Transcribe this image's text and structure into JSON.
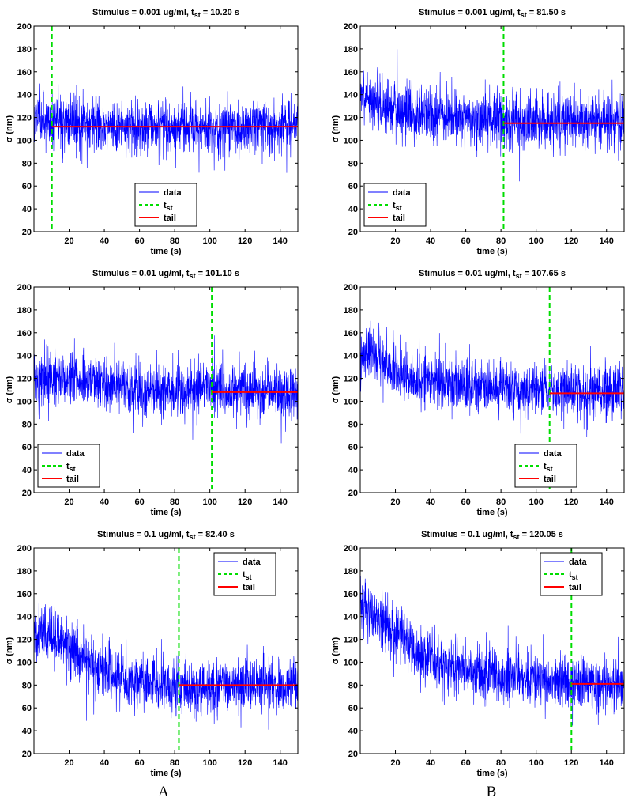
{
  "column_labels": [
    "A",
    "B"
  ],
  "colors": {
    "data": "#0000ff",
    "t_st": "#00dd00",
    "tail": "#ff0000",
    "axes": "#000000"
  },
  "chart_data": [
    {
      "type": "line",
      "title": "Stimulus = 0.001 ug/ml, t",
      "title_sub": "st",
      "title_suffix": " = 10.20 s",
      "xlabel": "time (s)",
      "ylabel": "σ (nm)",
      "xlim": [
        0,
        150
      ],
      "ylim": [
        20,
        200
      ],
      "xticks": [
        20,
        40,
        60,
        80,
        100,
        120,
        140
      ],
      "yticks": [
        20,
        40,
        60,
        80,
        100,
        120,
        140,
        160,
        180,
        200
      ],
      "legend_position": "bottom-center",
      "series": [
        {
          "name": "data",
          "style": "solid",
          "color": "#0000ff",
          "x": [
            0,
            10,
            20,
            40,
            60,
            80,
            100,
            120,
            150
          ],
          "y": [
            122,
            117,
            114,
            112,
            112,
            112,
            112,
            112,
            112
          ]
        },
        {
          "name": "t",
          "name_sub": "st",
          "style": "dashed",
          "color": "#00dd00",
          "x": [
            10.2,
            10.2
          ],
          "y": [
            20,
            200
          ]
        },
        {
          "name": "tail",
          "style": "solid",
          "color": "#ff0000",
          "x": [
            10.2,
            150
          ],
          "y": [
            112,
            112
          ]
        }
      ]
    },
    {
      "type": "line",
      "title": "Stimulus = 0.001 ug/ml, t",
      "title_sub": "st",
      "title_suffix": " = 81.50 s",
      "xlabel": "time (s)",
      "ylabel": "σ (nm)",
      "xlim": [
        0,
        150
      ],
      "ylim": [
        20,
        200
      ],
      "xticks": [
        20,
        40,
        60,
        80,
        100,
        120,
        140
      ],
      "yticks": [
        20,
        40,
        60,
        80,
        100,
        120,
        140,
        160,
        180,
        200
      ],
      "legend_position": "bottom-left",
      "series": [
        {
          "name": "data",
          "style": "solid",
          "color": "#0000ff",
          "x": [
            0,
            10,
            20,
            40,
            60,
            80,
            100,
            120,
            150
          ],
          "y": [
            143,
            132,
            126,
            122,
            120,
            118,
            116,
            115,
            115
          ]
        },
        {
          "name": "t",
          "name_sub": "st",
          "style": "dashed",
          "color": "#00dd00",
          "x": [
            81.5,
            81.5
          ],
          "y": [
            20,
            200
          ]
        },
        {
          "name": "tail",
          "style": "solid",
          "color": "#ff0000",
          "x": [
            81.5,
            150
          ],
          "y": [
            115,
            115
          ]
        }
      ]
    },
    {
      "type": "line",
      "title": "Stimulus = 0.01 ug/ml, t",
      "title_sub": "st",
      "title_suffix": " = 101.10 s",
      "xlabel": "time (s)",
      "ylabel": "σ (nm)",
      "xlim": [
        0,
        150
      ],
      "ylim": [
        20,
        200
      ],
      "xticks": [
        20,
        40,
        60,
        80,
        100,
        120,
        140
      ],
      "yticks": [
        20,
        40,
        60,
        80,
        100,
        120,
        140,
        160,
        180,
        200
      ],
      "legend_position": "bottom-left",
      "series": [
        {
          "name": "data",
          "style": "solid",
          "color": "#0000ff",
          "x": [
            0,
            20,
            40,
            60,
            80,
            90,
            100,
            120,
            150
          ],
          "y": [
            118,
            120,
            116,
            110,
            108,
            109,
            112,
            108,
            108
          ]
        },
        {
          "name": "t",
          "name_sub": "st",
          "style": "dashed",
          "color": "#00dd00",
          "x": [
            101.1,
            101.1
          ],
          "y": [
            20,
            200
          ]
        },
        {
          "name": "tail",
          "style": "solid",
          "color": "#ff0000",
          "x": [
            101.1,
            150
          ],
          "y": [
            108,
            108
          ]
        }
      ]
    },
    {
      "type": "line",
      "title": "Stimulus = 0.01 ug/ml, t",
      "title_sub": "st",
      "title_suffix": " = 107.65 s",
      "xlabel": "time (s)",
      "ylabel": "σ (nm)",
      "xlim": [
        0,
        150
      ],
      "ylim": [
        20,
        200
      ],
      "xticks": [
        20,
        40,
        60,
        80,
        100,
        120,
        140
      ],
      "yticks": [
        20,
        40,
        60,
        80,
        100,
        120,
        140,
        160,
        180,
        200
      ],
      "legend_position": "bottom-right",
      "series": [
        {
          "name": "data",
          "style": "solid",
          "color": "#0000ff",
          "x": [
            0,
            10,
            20,
            40,
            60,
            80,
            100,
            120,
            150
          ],
          "y": [
            138,
            140,
            126,
            118,
            114,
            112,
            110,
            108,
            107
          ]
        },
        {
          "name": "t",
          "name_sub": "st",
          "style": "dashed",
          "color": "#00dd00",
          "x": [
            107.65,
            107.65
          ],
          "y": [
            20,
            200
          ]
        },
        {
          "name": "tail",
          "style": "solid",
          "color": "#ff0000",
          "x": [
            107.65,
            150
          ],
          "y": [
            107,
            107
          ]
        }
      ]
    },
    {
      "type": "line",
      "title": "Stimulus = 0.1 ug/ml, t",
      "title_sub": "st",
      "title_suffix": " = 82.40 s",
      "xlabel": "time (s)",
      "ylabel": "σ (nm)",
      "xlim": [
        0,
        150
      ],
      "ylim": [
        20,
        200
      ],
      "xticks": [
        20,
        40,
        60,
        80,
        100,
        120,
        140
      ],
      "yticks": [
        20,
        40,
        60,
        80,
        100,
        120,
        140,
        160,
        180,
        200
      ],
      "legend_position": "top-right",
      "series": [
        {
          "name": "data",
          "style": "solid",
          "color": "#0000ff",
          "x": [
            0,
            10,
            20,
            30,
            40,
            50,
            60,
            70,
            82,
            100,
            120,
            150
          ],
          "y": [
            125,
            123,
            112,
            102,
            92,
            86,
            82,
            80,
            80,
            80,
            80,
            80
          ]
        },
        {
          "name": "t",
          "name_sub": "st",
          "style": "dashed",
          "color": "#00dd00",
          "x": [
            82.4,
            82.4
          ],
          "y": [
            20,
            200
          ]
        },
        {
          "name": "tail",
          "style": "solid",
          "color": "#ff0000",
          "x": [
            82.4,
            150
          ],
          "y": [
            80,
            80
          ]
        }
      ]
    },
    {
      "type": "line",
      "title": "Stimulus = 0.1 ug/ml, t",
      "title_sub": "st",
      "title_suffix": " = 120.05 s",
      "xlabel": "time (s)",
      "ylabel": "σ (nm)",
      "xlim": [
        0,
        150
      ],
      "ylim": [
        20,
        200
      ],
      "xticks": [
        20,
        40,
        60,
        80,
        100,
        120,
        140
      ],
      "yticks": [
        20,
        40,
        60,
        80,
        100,
        120,
        140,
        160,
        180,
        200
      ],
      "legend_position": "top-right",
      "series": [
        {
          "name": "data",
          "style": "solid",
          "color": "#0000ff",
          "x": [
            0,
            10,
            20,
            30,
            40,
            50,
            60,
            80,
            100,
            120,
            150
          ],
          "y": [
            145,
            140,
            125,
            112,
            100,
            96,
            92,
            88,
            85,
            82,
            80
          ]
        },
        {
          "name": "t",
          "name_sub": "st",
          "style": "dashed",
          "color": "#00dd00",
          "x": [
            120.05,
            120.05
          ],
          "y": [
            20,
            200
          ]
        },
        {
          "name": "tail",
          "style": "solid",
          "color": "#ff0000",
          "x": [
            120.05,
            150
          ],
          "y": [
            81,
            81
          ]
        }
      ]
    }
  ]
}
